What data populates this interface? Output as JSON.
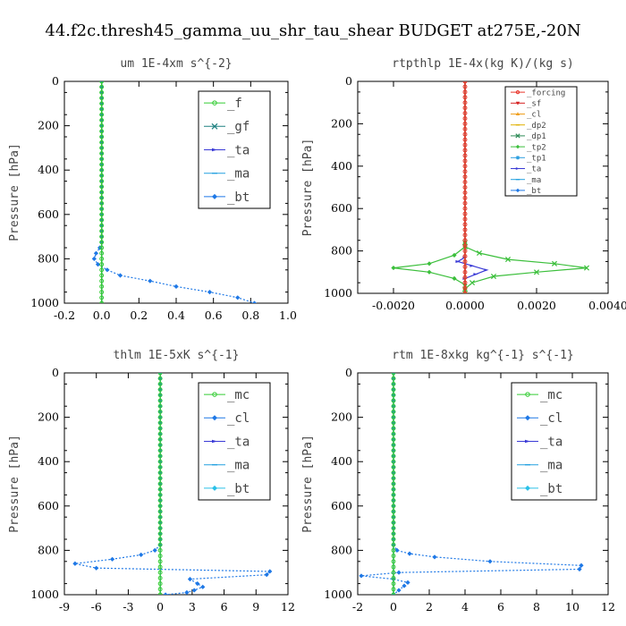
{
  "title": "44.f2c.thresh45_gamma_uu_shr_tau_shear  BUDGET at275E,-20N",
  "chart_data": [
    {
      "type": "line",
      "title": "um  1E-4xm s^{-2}",
      "ylabel": "Pressure [hPa]",
      "xlim": [
        -0.2,
        1.0
      ],
      "ylim": [
        1000,
        0
      ],
      "xticks": [
        "-0.2",
        "0.0",
        "0.2",
        "0.4",
        "0.6",
        "0.8",
        "1.0"
      ],
      "yticks": [
        "0",
        "200",
        "400",
        "600",
        "800",
        "1000"
      ],
      "legend_size": "large",
      "series": [
        {
          "name": "_f",
          "color": "#33cc33",
          "marker": "circle",
          "x": [
            0.0,
            0.0,
            0.0,
            0.0,
            0.0,
            0.0,
            0.0,
            0.0,
            0.0,
            0.0,
            0.0,
            0.0,
            0.0,
            0.0,
            0.0,
            0.0,
            0.0,
            0.0,
            0.0,
            0.0,
            0.0,
            0.0,
            0.0,
            0.0,
            0.0,
            0.0,
            0.0,
            0.0,
            0.0,
            0.0,
            0.0,
            0.0,
            0.0,
            0.0,
            0.0,
            0.0,
            0.0,
            0.0,
            0.0,
            0.0,
            0.0
          ],
          "y": [
            0,
            25,
            50,
            75,
            100,
            125,
            150,
            175,
            200,
            225,
            250,
            275,
            300,
            325,
            350,
            375,
            400,
            425,
            450,
            475,
            500,
            525,
            550,
            575,
            600,
            625,
            650,
            675,
            700,
            725,
            750,
            775,
            800,
            825,
            850,
            875,
            900,
            925,
            950,
            975,
            1000
          ]
        },
        {
          "name": "_gf",
          "color": "#1e8080",
          "marker": "x",
          "x": [
            0.0,
            0.0
          ],
          "y": [
            0,
            1000
          ]
        },
        {
          "name": "_ta",
          "color": "#3a3ad6",
          "marker": "arrow",
          "x": [
            0.0,
            0.0
          ],
          "y": [
            0,
            1000
          ]
        },
        {
          "name": "_ma",
          "color": "#22a0e0",
          "marker": "dash",
          "x": [
            0.0,
            0.0
          ],
          "y": [
            0,
            1000
          ]
        },
        {
          "name": "_bt",
          "color": "#1e78e6",
          "marker": "diamond",
          "dotted": true,
          "x": [
            0.0,
            0.0,
            0.0,
            0.0,
            0.0,
            0.0,
            0.0,
            0.0,
            0.0,
            0.0,
            0.0,
            0.0,
            0.0,
            0.0,
            0.0,
            0.0,
            0.0,
            0.0,
            0.0,
            0.0,
            0.0,
            0.0,
            0.0,
            0.0,
            0.0,
            0.0,
            0.0,
            0.0,
            0.0,
            0.0,
            -0.01,
            -0.03,
            -0.04,
            -0.02,
            0.03,
            0.1,
            0.26,
            0.4,
            0.58,
            0.73,
            0.82
          ],
          "y": [
            0,
            25,
            50,
            75,
            100,
            125,
            150,
            175,
            200,
            225,
            250,
            275,
            300,
            325,
            350,
            375,
            400,
            425,
            450,
            475,
            500,
            525,
            550,
            575,
            600,
            625,
            650,
            675,
            700,
            725,
            750,
            775,
            800,
            825,
            850,
            875,
            900,
            925,
            950,
            975,
            1000
          ]
        }
      ]
    },
    {
      "type": "line",
      "title": "rtpthlp  1E-4x(kg K)/(kg s)",
      "ylabel": "Pressure [hPa]",
      "xlim": [
        -0.003,
        0.004
      ],
      "ylim": [
        1000,
        0
      ],
      "xticks": [
        "-0.0020",
        "0.0000",
        "0.0020",
        "0.0040"
      ],
      "xtick_values": [
        -0.002,
        0.0,
        0.002,
        0.004
      ],
      "yticks": [
        "0",
        "200",
        "400",
        "600",
        "800",
        "1000"
      ],
      "legend_size": "small",
      "series": [
        {
          "name": "_forcing",
          "color": "#e8342a",
          "marker": "circle",
          "x": [
            0.0,
            0.0,
            0.0,
            0.0,
            0.0,
            0.0,
            0.0,
            0.0,
            0.0,
            0.0,
            0.0,
            0.0,
            0.0,
            0.0,
            0.0,
            0.0,
            0.0,
            0.0,
            0.0,
            0.0,
            0.0,
            0.0,
            0.0,
            0.0,
            0.0,
            0.0,
            0.0,
            0.0,
            0.0,
            0.0,
            0.0,
            0.0,
            0.0,
            0.0,
            0.0,
            0.0,
            0.0,
            0.0,
            0.0,
            0.0,
            0.0
          ],
          "y": [
            0,
            25,
            50,
            75,
            100,
            125,
            150,
            175,
            200,
            225,
            250,
            275,
            300,
            325,
            350,
            375,
            400,
            425,
            450,
            475,
            500,
            525,
            550,
            575,
            600,
            625,
            650,
            675,
            700,
            725,
            750,
            775,
            800,
            825,
            850,
            875,
            900,
            925,
            950,
            975,
            1000
          ]
        },
        {
          "name": "_sf",
          "color": "#d62020",
          "marker": "triangle-down",
          "x": [
            0.0,
            0.0
          ],
          "y": [
            0,
            1000
          ]
        },
        {
          "name": "_cl",
          "color": "#f0a020",
          "marker": "triangle",
          "x": [
            0.0,
            0.0
          ],
          "y": [
            0,
            1000
          ]
        },
        {
          "name": "_dp2",
          "color": "#e0b000",
          "marker": "dash",
          "x": [
            0.0,
            0.0
          ],
          "y": [
            0,
            1000
          ]
        },
        {
          "name": "_dp1",
          "color": "#2e8b57",
          "marker": "x",
          "x": [
            0.0,
            0.0
          ],
          "y": [
            0,
            1000
          ]
        },
        {
          "name": "_tp2",
          "color": "#3bbf3b",
          "marker": "diamond",
          "x": [
            0.0,
            0.0,
            -0.0003,
            -0.001,
            -0.002,
            -0.001,
            -0.0003,
            0.0,
            0.0,
            0.0
          ],
          "y": [
            760,
            780,
            820,
            860,
            880,
            900,
            930,
            960,
            980,
            1000
          ]
        },
        {
          "name": "_tp1",
          "color": "#2ea0e0",
          "marker": "star",
          "x": [
            0.0,
            0.0
          ],
          "y": [
            0,
            1000
          ]
        },
        {
          "name": "_ta",
          "color": "#3a3ad6",
          "marker": "arrow",
          "x": [
            0.0,
            -0.0002,
            0.0002,
            0.0006,
            0.0003,
            0.0
          ],
          "y": [
            830,
            850,
            870,
            890,
            910,
            930
          ]
        },
        {
          "name": "_ma",
          "color": "#22a0e0",
          "marker": "dash",
          "x": [
            0.0,
            0.0
          ],
          "y": [
            0,
            1000
          ]
        },
        {
          "name": "_bt",
          "color": "#1e78e6",
          "marker": "diamond",
          "x": [
            0.0,
            0.0
          ],
          "y": [
            0,
            1000
          ]
        },
        {
          "name": "",
          "color": "#3bbf3b",
          "marker": "x",
          "x": [
            0.0,
            0.0,
            0.0004,
            0.0012,
            0.0025,
            0.0034,
            0.002,
            0.0008,
            0.0002,
            0.0,
            0.0
          ],
          "y": [
            760,
            780,
            810,
            840,
            860,
            880,
            900,
            920,
            950,
            980,
            1000
          ]
        }
      ]
    },
    {
      "type": "line",
      "title": "thlm  1E-5xK s^{-1}",
      "ylabel": "Pressure [hPa]",
      "xlim": [
        -9,
        12
      ],
      "ylim": [
        1000,
        0
      ],
      "xticks": [
        "-9",
        "-6",
        "-3",
        "0",
        "3",
        "6",
        "9",
        "12"
      ],
      "yticks": [
        "0",
        "200",
        "400",
        "600",
        "800",
        "1000"
      ],
      "legend_size": "large",
      "series": [
        {
          "name": "_mc",
          "color": "#33cc33",
          "marker": "circle",
          "x": [
            0.0,
            0.0,
            0.0,
            0.0,
            0.0,
            0.0,
            0.0,
            0.0,
            0.0,
            0.0,
            0.0,
            0.0,
            0.0,
            0.0,
            0.0,
            0.0,
            0.0,
            0.0,
            0.0,
            0.0,
            0.0,
            0.0,
            0.0,
            0.0,
            0.0,
            0.0,
            0.0,
            0.0,
            0.0,
            0.0,
            0.0,
            0.0,
            0.0,
            0.0,
            0.0,
            0.0,
            0.0,
            0.0,
            0.0,
            0.0,
            0.0
          ],
          "y": [
            0,
            25,
            50,
            75,
            100,
            125,
            150,
            175,
            200,
            225,
            250,
            275,
            300,
            325,
            350,
            375,
            400,
            425,
            450,
            475,
            500,
            525,
            550,
            575,
            600,
            625,
            650,
            675,
            700,
            725,
            750,
            775,
            800,
            825,
            850,
            875,
            900,
            925,
            950,
            975,
            1000
          ]
        },
        {
          "name": "_cl",
          "color": "#1e78e6",
          "marker": "diamond",
          "dotted": true,
          "x": [
            0.0,
            0.0,
            0.0,
            0.0,
            0.0,
            0.0,
            0.0,
            0.0,
            0.0,
            0.0,
            0.0,
            0.0,
            0.0,
            0.0,
            0.0,
            0.0,
            0.0,
            0.0,
            0.0,
            0.0,
            0.0,
            0.0,
            0.0,
            0.0,
            0.0,
            0.0,
            0.0,
            0.0,
            0.0,
            0.0,
            0.0,
            0.0,
            -0.5,
            -1.8,
            -4.5,
            -8.0,
            -6.0,
            10.3,
            10.0,
            2.8,
            3.5,
            4.0,
            3.2,
            2.5,
            0.5
          ],
          "y": [
            0,
            25,
            50,
            75,
            100,
            125,
            150,
            175,
            200,
            225,
            250,
            275,
            300,
            325,
            350,
            375,
            400,
            425,
            450,
            475,
            500,
            525,
            550,
            575,
            600,
            625,
            650,
            675,
            700,
            725,
            750,
            775,
            800,
            820,
            840,
            860,
            880,
            895,
            910,
            930,
            950,
            965,
            980,
            990,
            1000
          ]
        },
        {
          "name": "_ta",
          "color": "#3a3ad6",
          "marker": "arrow",
          "x": [
            0.0,
            0.0
          ],
          "y": [
            0,
            1000
          ]
        },
        {
          "name": "_ma",
          "color": "#22a0e0",
          "marker": "dash",
          "x": [
            0.0,
            0.0
          ],
          "y": [
            0,
            1000
          ]
        },
        {
          "name": "_bt",
          "color": "#2ac0e8",
          "marker": "diamond",
          "x": [
            0.0,
            0.0
          ],
          "y": [
            0,
            1000
          ]
        }
      ]
    },
    {
      "type": "line",
      "title": "rtm  1E-8xkg kg^{-1} s^{-1}",
      "ylabel": "Pressure [hPa]",
      "xlim": [
        -2,
        12
      ],
      "ylim": [
        1000,
        0
      ],
      "xticks": [
        "-2",
        "0",
        "2",
        "4",
        "6",
        "8",
        "10",
        "12"
      ],
      "yticks": [
        "0",
        "200",
        "400",
        "600",
        "800",
        "1000"
      ],
      "legend_size": "large",
      "series": [
        {
          "name": "_mc",
          "color": "#33cc33",
          "marker": "circle",
          "x": [
            0.0,
            0.0,
            0.0,
            0.0,
            0.0,
            0.0,
            0.0,
            0.0,
            0.0,
            0.0,
            0.0,
            0.0,
            0.0,
            0.0,
            0.0,
            0.0,
            0.0,
            0.0,
            0.0,
            0.0,
            0.0,
            0.0,
            0.0,
            0.0,
            0.0,
            0.0,
            0.0,
            0.0,
            0.0,
            0.0,
            0.0,
            0.0,
            0.0,
            0.0,
            0.0,
            0.0,
            0.0,
            0.0,
            0.0,
            0.0,
            0.0
          ],
          "y": [
            0,
            25,
            50,
            75,
            100,
            125,
            150,
            175,
            200,
            225,
            250,
            275,
            300,
            325,
            350,
            375,
            400,
            425,
            450,
            475,
            500,
            525,
            550,
            575,
            600,
            625,
            650,
            675,
            700,
            725,
            750,
            775,
            800,
            825,
            850,
            875,
            900,
            925,
            950,
            975,
            1000
          ]
        },
        {
          "name": "_cl",
          "color": "#1e78e6",
          "marker": "diamond",
          "dotted": true,
          "x": [
            0.0,
            0.0,
            0.0,
            0.0,
            0.0,
            0.0,
            0.0,
            0.0,
            0.0,
            0.0,
            0.0,
            0.0,
            0.0,
            0.0,
            0.0,
            0.0,
            0.0,
            0.0,
            0.0,
            0.0,
            0.0,
            0.0,
            0.0,
            0.0,
            0.0,
            0.0,
            0.0,
            0.0,
            0.0,
            0.0,
            0.0,
            0.0,
            0.2,
            0.9,
            2.3,
            5.4,
            10.5,
            10.4,
            0.3,
            -1.8,
            0.0,
            0.8,
            0.6,
            0.3,
            0.0
          ],
          "y": [
            0,
            25,
            50,
            75,
            100,
            125,
            150,
            175,
            200,
            225,
            250,
            275,
            300,
            325,
            350,
            375,
            400,
            425,
            450,
            475,
            500,
            525,
            550,
            575,
            600,
            625,
            650,
            675,
            700,
            725,
            750,
            775,
            800,
            815,
            830,
            850,
            868,
            885,
            900,
            915,
            930,
            945,
            960,
            980,
            1000
          ]
        },
        {
          "name": "_ta",
          "color": "#3a3ad6",
          "marker": "arrow",
          "x": [
            0.0,
            0.0
          ],
          "y": [
            0,
            1000
          ]
        },
        {
          "name": "_ma",
          "color": "#22a0e0",
          "marker": "dash",
          "x": [
            0.0,
            0.0
          ],
          "y": [
            0,
            1000
          ]
        },
        {
          "name": "_bt",
          "color": "#2ac0e8",
          "marker": "diamond",
          "x": [
            0.0,
            0.0
          ],
          "y": [
            0,
            1000
          ]
        }
      ]
    }
  ]
}
